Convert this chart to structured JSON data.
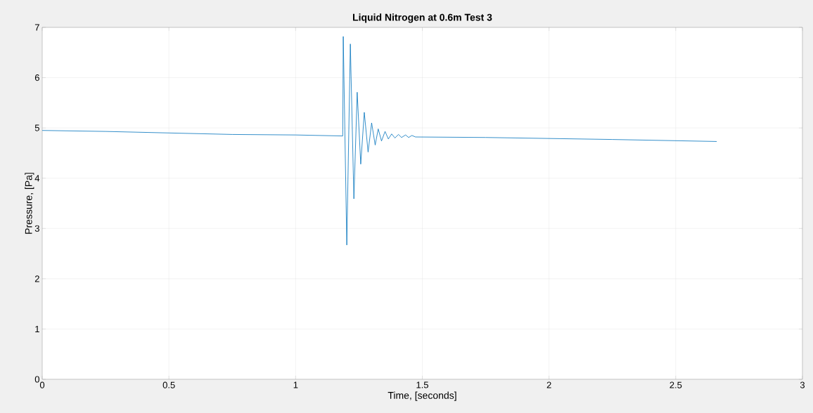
{
  "chart_data": {
    "type": "line",
    "title": "**Liquid Nitrogen at 0.6m Test 3**",
    "xlabel": "Time, [seconds]",
    "ylabel": "Pressure, [Pa]",
    "x": [
      0,
      0.25,
      0.5,
      0.75,
      1.0,
      1.186,
      1.188,
      1.202,
      1.216,
      1.23,
      1.243,
      1.257,
      1.271,
      1.286,
      1.3,
      1.314,
      1.326,
      1.339,
      1.353,
      1.366,
      1.379,
      1.392,
      1.406,
      1.418,
      1.434,
      1.446,
      1.459,
      1.473,
      1.75,
      2.0,
      2.25,
      2.662
    ],
    "series": [
      {
        "color": "#0072bd",
        "values": [
          4.95,
          4.93,
          4.9,
          4.87,
          4.86,
          4.84,
          6.82,
          2.67,
          6.67,
          3.59,
          5.71,
          4.28,
          5.31,
          4.52,
          5.1,
          4.66,
          4.98,
          4.74,
          4.93,
          4.78,
          4.88,
          4.8,
          4.87,
          4.81,
          4.86,
          4.81,
          4.85,
          4.82,
          4.81,
          4.79,
          4.77,
          4.73
        ]
      }
    ],
    "xlim": [
      0,
      3
    ],
    "ylim": [
      0,
      7
    ],
    "xticks": [
      0,
      0.5,
      1,
      1.5,
      2,
      2.5,
      3
    ],
    "yticks": [
      0,
      1,
      2,
      3,
      4,
      5,
      6,
      7
    ],
    "grid": true,
    "marker": "none",
    "line_style": "solid"
  }
}
